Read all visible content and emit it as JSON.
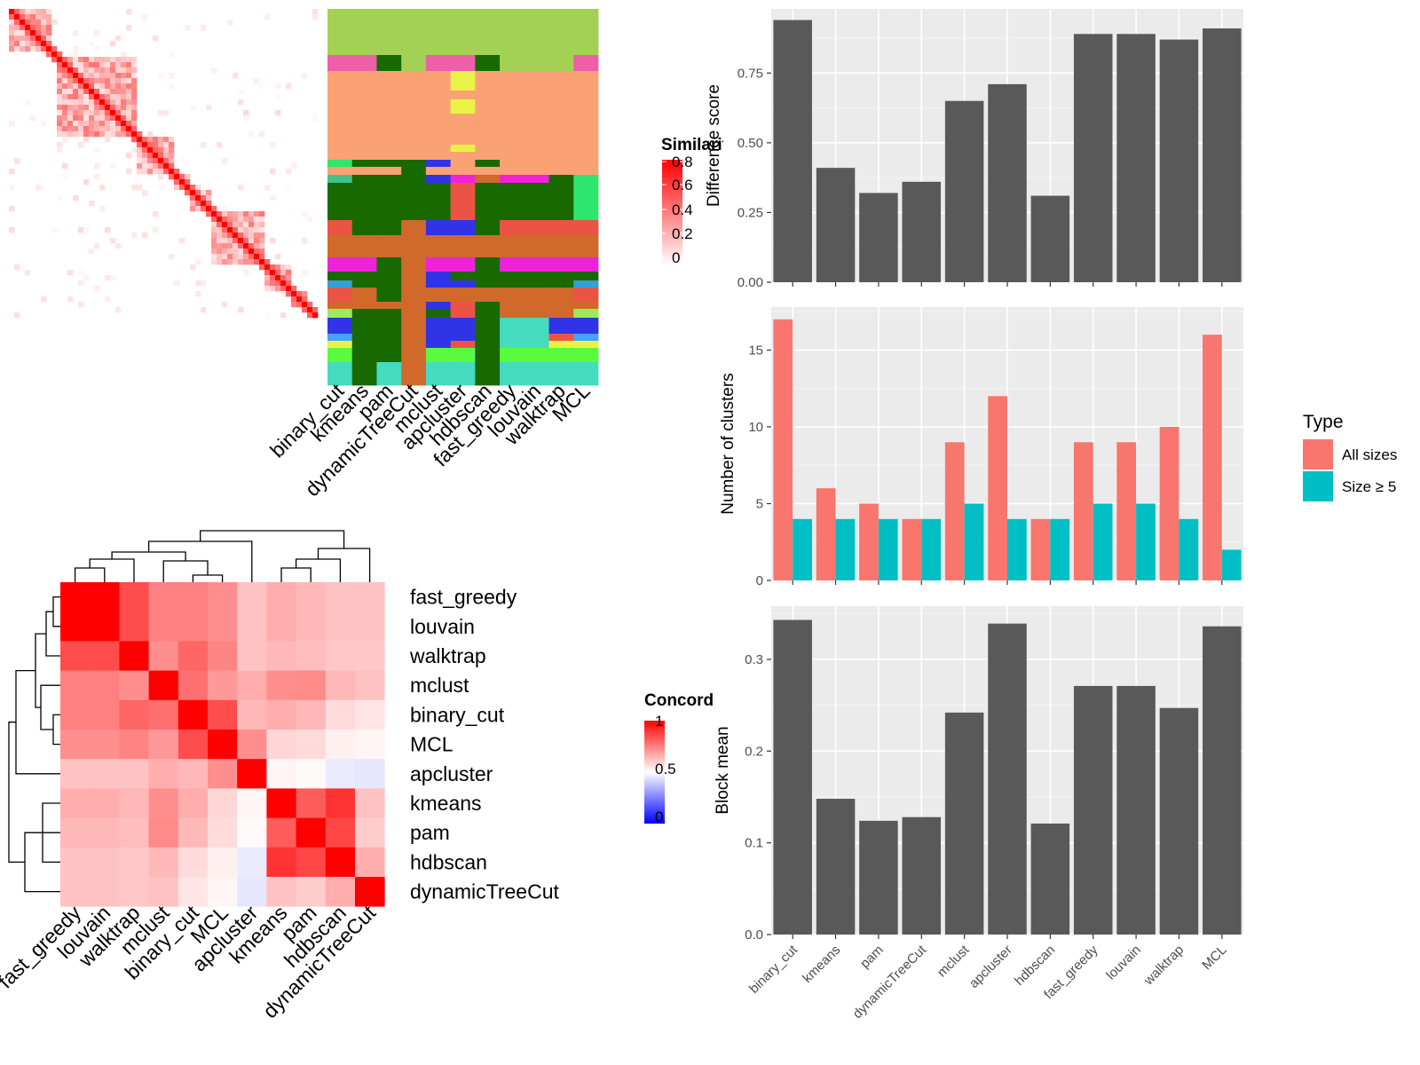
{
  "colors": {
    "bar_dark": "#595959",
    "all_sizes": "#F8766D",
    "size5": "#00BFC4",
    "panel_bg": "#EBEBEB",
    "red": "#FF0000",
    "blue": "#0000FF"
  },
  "methods": [
    "binary_cut",
    "kmeans",
    "pam",
    "dynamicTreeCut",
    "mclust",
    "apcluster",
    "hdbscan",
    "fast_greedy",
    "louvain",
    "walktrap",
    "MCL"
  ],
  "similarity_legend": {
    "title": "Similarity",
    "ticks": [
      "0.8",
      "0.6",
      "0.4",
      "0.2",
      "0"
    ]
  },
  "concordance_legend": {
    "title": "Concordance",
    "ticks": [
      "1",
      "0.5",
      "0"
    ]
  },
  "concordance_order": [
    "fast_greedy",
    "louvain",
    "walktrap",
    "mclust",
    "binary_cut",
    "MCL",
    "apcluster",
    "kmeans",
    "pam",
    "hdbscan",
    "dynamicTreeCut"
  ],
  "chart_data": [
    {
      "type": "bar",
      "categories": [
        "binary_cut",
        "kmeans",
        "pam",
        "dynamicTreeCut",
        "mclust",
        "apcluster",
        "hdbscan",
        "fast_greedy",
        "louvain",
        "walktrap",
        "MCL"
      ],
      "values": [
        0.94,
        0.41,
        0.32,
        0.36,
        0.65,
        0.71,
        0.31,
        0.89,
        0.89,
        0.87,
        0.91
      ],
      "ylabel": "Difference score",
      "ylim": [
        0,
        0.98
      ],
      "yticks": [
        "0.00",
        "0.25",
        "0.50",
        "0.75"
      ]
    },
    {
      "type": "bar",
      "categories": [
        "binary_cut",
        "kmeans",
        "pam",
        "dynamicTreeCut",
        "mclust",
        "apcluster",
        "hdbscan",
        "fast_greedy",
        "louvain",
        "walktrap",
        "MCL"
      ],
      "series": [
        {
          "name": "All sizes",
          "values": [
            17,
            6,
            5,
            4,
            9,
            12,
            4,
            9,
            9,
            10,
            16
          ]
        },
        {
          "name": "Size ≥ 5",
          "values": [
            4,
            4,
            4,
            4,
            5,
            4,
            4,
            5,
            5,
            4,
            2
          ]
        }
      ],
      "ylabel": "Number of clusters",
      "ylim": [
        0,
        17.8
      ],
      "yticks": [
        "0",
        "5",
        "10",
        "15"
      ],
      "legend": {
        "title": "Type",
        "position": "right"
      }
    },
    {
      "type": "bar",
      "categories": [
        "binary_cut",
        "kmeans",
        "pam",
        "dynamicTreeCut",
        "mclust",
        "apcluster",
        "hdbscan",
        "fast_greedy",
        "louvain",
        "walktrap",
        "MCL"
      ],
      "values": [
        0.343,
        0.148,
        0.124,
        0.128,
        0.242,
        0.339,
        0.121,
        0.271,
        0.271,
        0.247,
        0.336
      ],
      "ylabel": "Block mean",
      "ylim": [
        0,
        0.358
      ],
      "yticks": [
        "0.0",
        "0.1",
        "0.2",
        "0.3"
      ]
    },
    {
      "type": "heatmap",
      "rows": [
        "fast_greedy",
        "louvain",
        "walktrap",
        "mclust",
        "binary_cut",
        "MCL",
        "apcluster",
        "kmeans",
        "pam",
        "hdbscan",
        "dynamicTreeCut"
      ],
      "cols": [
        "fast_greedy",
        "louvain",
        "walktrap",
        "mclust",
        "binary_cut",
        "MCL",
        "apcluster",
        "kmeans",
        "pam",
        "hdbscan",
        "dynamicTreeCut"
      ],
      "values": [
        [
          1.0,
          1.0,
          0.85,
          0.75,
          0.75,
          0.72,
          0.62,
          0.66,
          0.64,
          0.62,
          0.62
        ],
        [
          1.0,
          1.0,
          0.85,
          0.75,
          0.75,
          0.72,
          0.62,
          0.66,
          0.64,
          0.62,
          0.62
        ],
        [
          0.85,
          0.85,
          1.0,
          0.72,
          0.8,
          0.74,
          0.62,
          0.64,
          0.63,
          0.61,
          0.61
        ],
        [
          0.75,
          0.75,
          0.72,
          1.0,
          0.78,
          0.7,
          0.66,
          0.72,
          0.73,
          0.64,
          0.62
        ],
        [
          0.75,
          0.75,
          0.8,
          0.78,
          1.0,
          0.85,
          0.64,
          0.66,
          0.64,
          0.57,
          0.55
        ],
        [
          0.72,
          0.72,
          0.74,
          0.7,
          0.85,
          1.0,
          0.72,
          0.58,
          0.57,
          0.53,
          0.52
        ],
        [
          0.62,
          0.62,
          0.62,
          0.66,
          0.64,
          0.72,
          1.0,
          0.52,
          0.51,
          0.46,
          0.45
        ],
        [
          0.66,
          0.66,
          0.64,
          0.72,
          0.66,
          0.58,
          0.52,
          1.0,
          0.82,
          0.9,
          0.62
        ],
        [
          0.64,
          0.64,
          0.63,
          0.73,
          0.64,
          0.57,
          0.51,
          0.82,
          1.0,
          0.86,
          0.6
        ],
        [
          0.62,
          0.62,
          0.61,
          0.64,
          0.57,
          0.53,
          0.46,
          0.9,
          0.86,
          1.0,
          0.66
        ],
        [
          0.62,
          0.62,
          0.61,
          0.62,
          0.55,
          0.52,
          0.45,
          0.62,
          0.6,
          0.66,
          1.0
        ]
      ]
    }
  ]
}
